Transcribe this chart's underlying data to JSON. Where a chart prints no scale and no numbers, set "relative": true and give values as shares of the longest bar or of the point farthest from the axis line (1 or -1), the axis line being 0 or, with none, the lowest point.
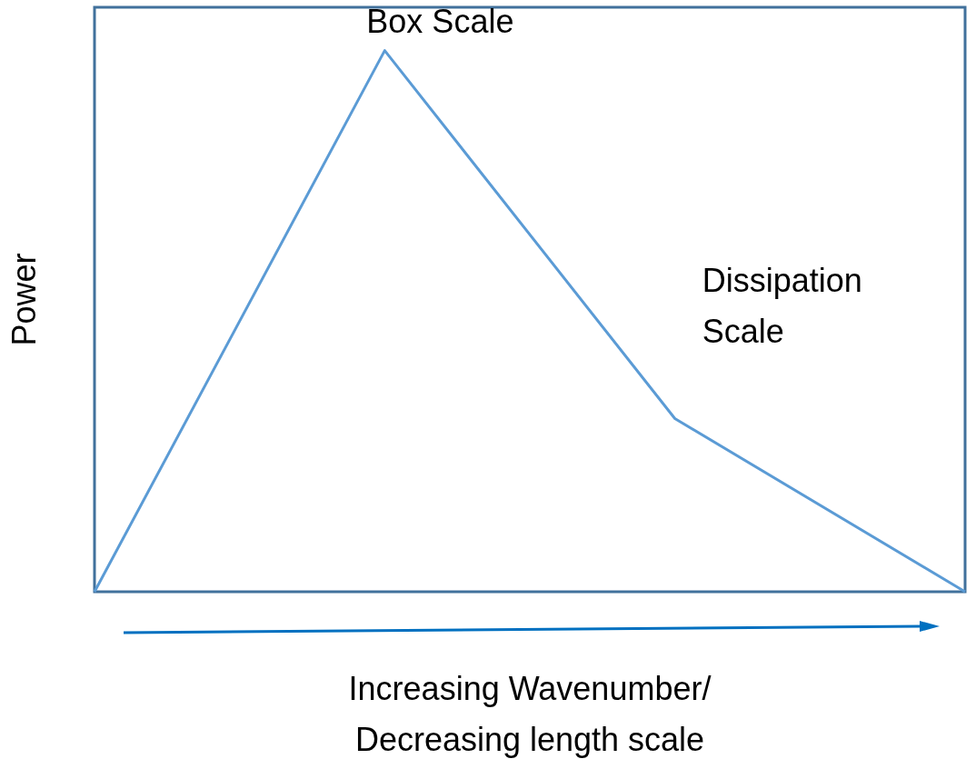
{
  "chart_data": {
    "type": "line",
    "relative": true,
    "categories": [
      null,
      null,
      null,
      null
    ],
    "series": [
      {
        "color": "#5b9bd5",
        "values": [
          0,
          1,
          0.32,
          0
        ]
      }
    ],
    "ylabel": "Power",
    "xlabel": "Increasing Wavenumber/\nDecreasing length scale",
    "annotations": [
      "Box Scale",
      "Dissipation Scale"
    ],
    "grid": false,
    "marker": "none",
    "line_style": "solid"
  }
}
